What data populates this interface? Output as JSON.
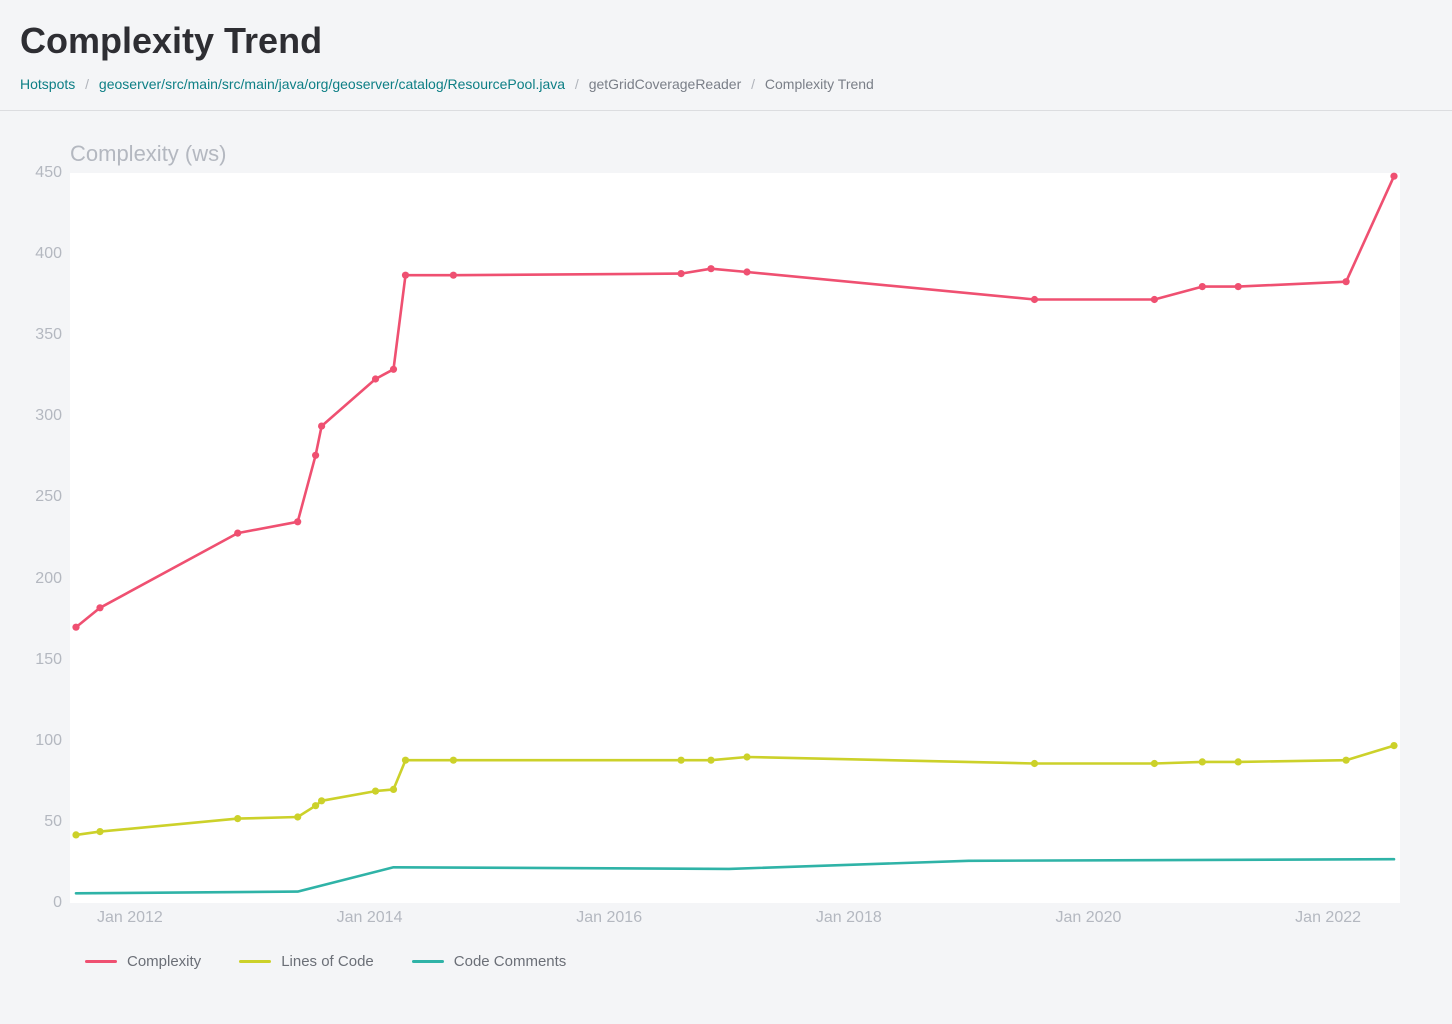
{
  "title": "Complexity Trend",
  "breadcrumb": {
    "items": [
      {
        "label": "Hotspots",
        "link": true
      },
      {
        "label": "geoserver/src/main/src/main/java/org/geoserver/catalog/ResourcePool.java",
        "link": true
      },
      {
        "label": "getGridCoverageReader",
        "link": false
      },
      {
        "label": "Complexity Trend",
        "link": false
      }
    ]
  },
  "chart": {
    "ylabel": "Complexity (ws)",
    "background_color": "#ffffff",
    "page_background": "#f4f5f7",
    "ylim": [
      0,
      450
    ],
    "yticks": [
      0,
      50,
      100,
      150,
      200,
      250,
      300,
      350,
      400,
      450
    ],
    "xlim": [
      2011.5,
      2022.6
    ],
    "xticks": [
      2012,
      2014,
      2016,
      2018,
      2020,
      2022
    ],
    "xtick_prefix": "Jan ",
    "tick_color": "#b4b8c0",
    "tick_fontsize": 16,
    "line_width": 2.6,
    "marker_radius": 3.6,
    "series": [
      {
        "name": "Complexity",
        "color": "#ef5071",
        "markers": true,
        "data": [
          {
            "x": 2011.55,
            "y": 170
          },
          {
            "x": 2011.75,
            "y": 182
          },
          {
            "x": 2012.9,
            "y": 228
          },
          {
            "x": 2013.4,
            "y": 235
          },
          {
            "x": 2013.55,
            "y": 276
          },
          {
            "x": 2013.6,
            "y": 294
          },
          {
            "x": 2014.05,
            "y": 323
          },
          {
            "x": 2014.2,
            "y": 329
          },
          {
            "x": 2014.3,
            "y": 387
          },
          {
            "x": 2014.7,
            "y": 387
          },
          {
            "x": 2016.6,
            "y": 388
          },
          {
            "x": 2016.85,
            "y": 391
          },
          {
            "x": 2017.15,
            "y": 389
          },
          {
            "x": 2019.55,
            "y": 372
          },
          {
            "x": 2020.55,
            "y": 372
          },
          {
            "x": 2020.95,
            "y": 380
          },
          {
            "x": 2021.25,
            "y": 380
          },
          {
            "x": 2022.15,
            "y": 383
          },
          {
            "x": 2022.55,
            "y": 448
          }
        ]
      },
      {
        "name": "Lines of Code",
        "color": "#ccd12a",
        "markers": true,
        "data": [
          {
            "x": 2011.55,
            "y": 42
          },
          {
            "x": 2011.75,
            "y": 44
          },
          {
            "x": 2012.9,
            "y": 52
          },
          {
            "x": 2013.4,
            "y": 53
          },
          {
            "x": 2013.55,
            "y": 60
          },
          {
            "x": 2013.6,
            "y": 63
          },
          {
            "x": 2014.05,
            "y": 69
          },
          {
            "x": 2014.2,
            "y": 70
          },
          {
            "x": 2014.3,
            "y": 88
          },
          {
            "x": 2014.7,
            "y": 88
          },
          {
            "x": 2016.6,
            "y": 88
          },
          {
            "x": 2016.85,
            "y": 88
          },
          {
            "x": 2017.15,
            "y": 90
          },
          {
            "x": 2019.55,
            "y": 86
          },
          {
            "x": 2020.55,
            "y": 86
          },
          {
            "x": 2020.95,
            "y": 87
          },
          {
            "x": 2021.25,
            "y": 87
          },
          {
            "x": 2022.15,
            "y": 88
          },
          {
            "x": 2022.55,
            "y": 97
          }
        ]
      },
      {
        "name": "Code Comments",
        "color": "#2fb3a7",
        "markers": false,
        "data": [
          {
            "x": 2011.55,
            "y": 6
          },
          {
            "x": 2013.4,
            "y": 7
          },
          {
            "x": 2014.2,
            "y": 22
          },
          {
            "x": 2017.0,
            "y": 21
          },
          {
            "x": 2019.0,
            "y": 26
          },
          {
            "x": 2022.55,
            "y": 27
          }
        ]
      }
    ],
    "legend": [
      {
        "label": "Complexity",
        "color": "#ef5071"
      },
      {
        "label": "Lines of Code",
        "color": "#ccd12a"
      },
      {
        "label": "Code Comments",
        "color": "#2fb3a7"
      }
    ]
  }
}
